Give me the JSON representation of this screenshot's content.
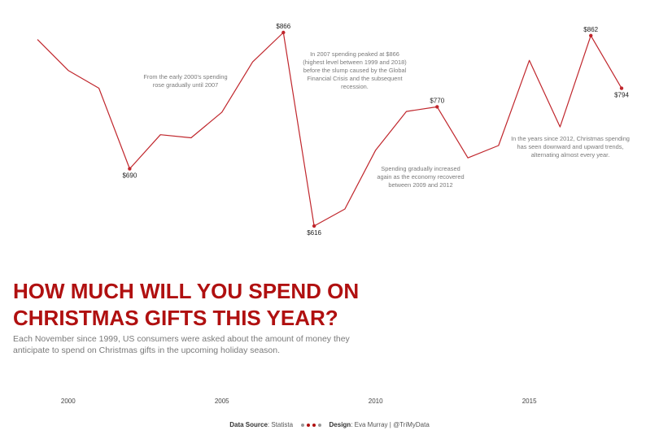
{
  "header": {
    "title": "HOW MUCH WILL YOU SPEND ON CHRISTMAS GIFTS THIS YEAR?",
    "subtitle": "Each November since 1999, US consumers were asked about the amount of money they anticipate to spend on Christmas gifts in the upcoming holiday season."
  },
  "footer": {
    "source_label": "Data Source",
    "source_value": "Statista",
    "design_label": "Design",
    "design_value": "Eva Murray | @TriMyData",
    "dot_colors": [
      "#999999",
      "#b01010",
      "#b01010",
      "#999999"
    ]
  },
  "colors": {
    "line": "#c0262c",
    "title": "#b01010",
    "annotation": "#7a7a7a",
    "label": "#222222"
  },
  "chart_data": {
    "type": "line",
    "x": [
      1999,
      2000,
      2001,
      2002,
      2003,
      2004,
      2005,
      2006,
      2007,
      2008,
      2009,
      2010,
      2011,
      2012,
      2013,
      2014,
      2015,
      2016,
      2017,
      2018
    ],
    "series": [
      {
        "values": [
          857,
          817,
          794,
          690,
          734,
          730,
          763,
          828,
          866,
          616,
          638,
          714,
          764,
          770,
          704,
          720,
          830,
          744,
          862,
          794
        ]
      }
    ],
    "ylim": [
      600,
      880
    ],
    "xticks": [
      "2000",
      "2005",
      "2010",
      "2015"
    ],
    "xtick_values": [
      2000,
      2005,
      2010,
      2015
    ],
    "point_labels": [
      {
        "x": 2002,
        "text": "$690",
        "pos": "below"
      },
      {
        "x": 2007,
        "text": "$866",
        "pos": "above"
      },
      {
        "x": 2008,
        "text": "$616",
        "pos": "below"
      },
      {
        "x": 2012,
        "text": "$770",
        "pos": "above"
      },
      {
        "x": 2017,
        "text": "$862",
        "pos": "above"
      },
      {
        "x": 2018,
        "text": "$794",
        "pos": "below"
      }
    ],
    "annotations": [
      {
        "lines": [
          "From the early 2000's spending",
          "rose gradually until 2007"
        ]
      },
      {
        "lines": [
          "In 2007 spending peaked at $866",
          "(highest level between 1999 and 2018)",
          "before the slump caused by the Global",
          "Financial Crisis and the subsequent",
          "recession."
        ]
      },
      {
        "lines": [
          "Spending gradually increased",
          "again as the economy recovered",
          "between 2009 and 2012"
        ]
      },
      {
        "lines": [
          "In the years since 2012, Christmas spending",
          "has seen downward and upward trends,",
          "alternating almost every year."
        ]
      }
    ]
  }
}
